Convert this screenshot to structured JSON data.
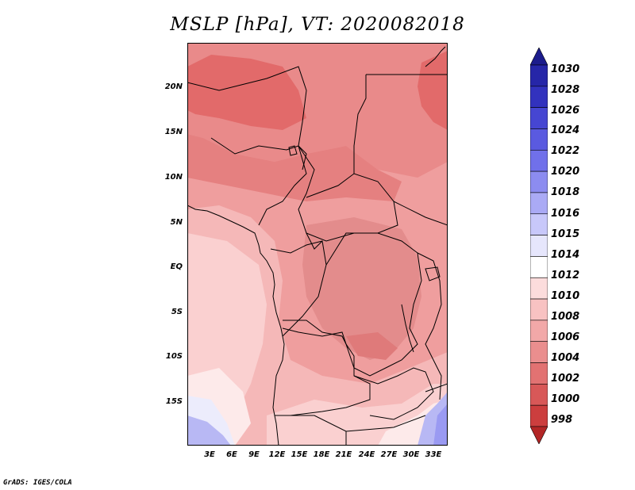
{
  "title": "MSLP [hPa], VT: 2020082018",
  "credit": "GrADS: IGES/COLA",
  "map": {
    "lat_labels": [
      "20N",
      "15N",
      "10N",
      "5N",
      "EQ",
      "5S",
      "10S",
      "15S"
    ],
    "lon_labels": [
      "3E",
      "6E",
      "9E",
      "12E",
      "15E",
      "18E",
      "21E",
      "24E",
      "27E",
      "30E",
      "33E"
    ]
  },
  "colorbar": {
    "labels": [
      "1030",
      "1028",
      "1026",
      "1024",
      "1022",
      "1020",
      "1018",
      "1016",
      "1015",
      "1014",
      "1012",
      "1010",
      "1008",
      "1006",
      "1004",
      "1002",
      "1000",
      "998"
    ],
    "colors": [
      "#1c1c8c",
      "#2626a8",
      "#3232be",
      "#4646d2",
      "#5a5ae0",
      "#7070ea",
      "#8c8cf0",
      "#aaaaf5",
      "#c8c8fa",
      "#e6e6fc",
      "#ffffff",
      "#fcdcdc",
      "#f8c2c2",
      "#f2a8a8",
      "#ea8e8e",
      "#e27272",
      "#d85858",
      "#cc3e3e",
      "#b22626"
    ]
  }
}
